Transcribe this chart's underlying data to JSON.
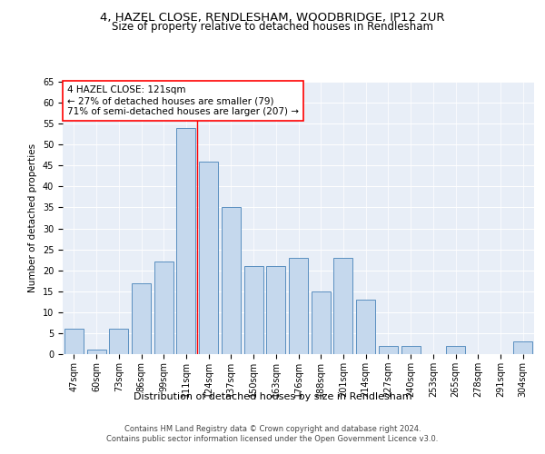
{
  "title1": "4, HAZEL CLOSE, RENDLESHAM, WOODBRIDGE, IP12 2UR",
  "title2": "Size of property relative to detached houses in Rendlesham",
  "xlabel": "Distribution of detached houses by size in Rendlesham",
  "ylabel": "Number of detached properties",
  "categories": [
    "47sqm",
    "60sqm",
    "73sqm",
    "86sqm",
    "99sqm",
    "111sqm",
    "124sqm",
    "137sqm",
    "150sqm",
    "163sqm",
    "176sqm",
    "188sqm",
    "201sqm",
    "214sqm",
    "227sqm",
    "240sqm",
    "253sqm",
    "265sqm",
    "278sqm",
    "291sqm",
    "304sqm"
  ],
  "values": [
    6,
    1,
    6,
    17,
    22,
    54,
    46,
    35,
    21,
    21,
    23,
    15,
    23,
    13,
    2,
    2,
    0,
    2,
    0,
    0,
    3
  ],
  "bar_color": "#c5d8ed",
  "bar_edge_color": "#5a8fc0",
  "vline_x": 5.5,
  "annotation_text": "4 HAZEL CLOSE: 121sqm\n← 27% of detached houses are smaller (79)\n71% of semi-detached houses are larger (207) →",
  "annotation_box_color": "white",
  "annotation_box_edge_color": "red",
  "ylim": [
    0,
    65
  ],
  "yticks": [
    0,
    5,
    10,
    15,
    20,
    25,
    30,
    35,
    40,
    45,
    50,
    55,
    60,
    65
  ],
  "bg_color": "#e8eef7",
  "footer_text": "Contains HM Land Registry data © Crown copyright and database right 2024.\nContains public sector information licensed under the Open Government Licence v3.0.",
  "title1_fontsize": 9.5,
  "title2_fontsize": 8.5,
  "xlabel_fontsize": 8,
  "ylabel_fontsize": 7.5,
  "tick_fontsize": 7,
  "annotation_fontsize": 7.5,
  "footer_fontsize": 6
}
